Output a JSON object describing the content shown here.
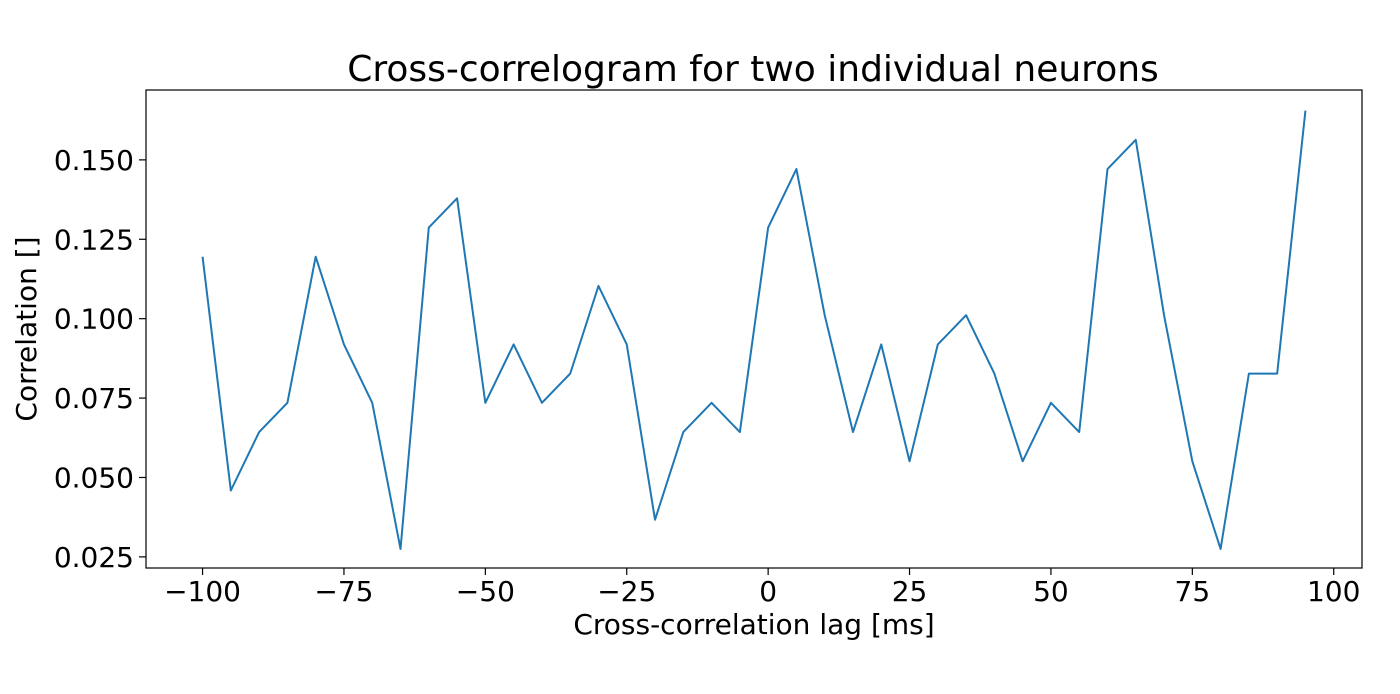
{
  "chart_data": {
    "type": "line",
    "title": "Cross-correlogram for two individual neurons",
    "xlabel": "Cross-correlation lag [ms]",
    "ylabel": "Correlation []",
    "xlim": [
      -110,
      105
    ],
    "ylim": [
      0.0215,
      0.172
    ],
    "xticks": [
      -100,
      -75,
      -50,
      -25,
      0,
      25,
      50,
      75,
      100
    ],
    "xtick_labels": [
      "−100",
      "−75",
      "−50",
      "−25",
      "0",
      "25",
      "50",
      "75",
      "100"
    ],
    "yticks": [
      0.025,
      0.05,
      0.075,
      0.1,
      0.125,
      0.15
    ],
    "ytick_labels": [
      "0.025",
      "0.050",
      "0.075",
      "0.100",
      "0.125",
      "0.150"
    ],
    "grid": false,
    "line_color": "#1f77b4",
    "series": [
      {
        "name": "cross-correlogram",
        "x": [
          -100,
          -95,
          -90,
          -85,
          -80,
          -75,
          -70,
          -65,
          -60,
          -55,
          -50,
          -45,
          -40,
          -35,
          -30,
          -25,
          -20,
          -15,
          -10,
          -5,
          0,
          5,
          10,
          15,
          20,
          25,
          30,
          35,
          40,
          45,
          50,
          55,
          60,
          65,
          70,
          75,
          80,
          85,
          90,
          95
        ],
        "y": [
          0.1195,
          0.0459,
          0.0643,
          0.0735,
          0.1195,
          0.0919,
          0.0735,
          0.0275,
          0.1287,
          0.1379,
          0.0735,
          0.0919,
          0.0735,
          0.0827,
          0.1103,
          0.0919,
          0.0367,
          0.0643,
          0.0735,
          0.0643,
          0.1287,
          0.1471,
          0.1011,
          0.0643,
          0.0919,
          0.0551,
          0.0919,
          0.1011,
          0.0827,
          0.0551,
          0.0735,
          0.0643,
          0.1471,
          0.1563,
          0.1011,
          0.0551,
          0.0275,
          0.0827,
          0.0827,
          0.1655
        ]
      }
    ]
  }
}
